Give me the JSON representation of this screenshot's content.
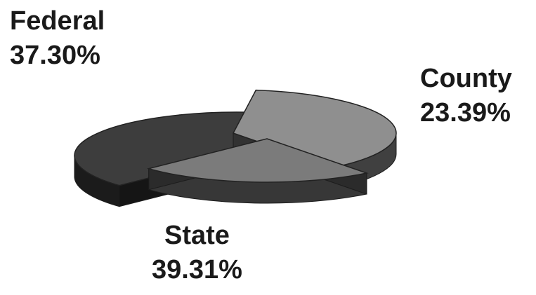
{
  "chart_data": {
    "type": "pie",
    "title": "",
    "slices": [
      {
        "label": "Federal",
        "value": 37.3,
        "value_label": "37.30%",
        "color": "#8f8f8f"
      },
      {
        "label": "County",
        "value": 23.39,
        "value_label": "23.39%",
        "color": "#7b7b7b"
      },
      {
        "label": "State",
        "value": 39.31,
        "value_label": "39.31%",
        "color": "#3d3d3d"
      }
    ]
  }
}
